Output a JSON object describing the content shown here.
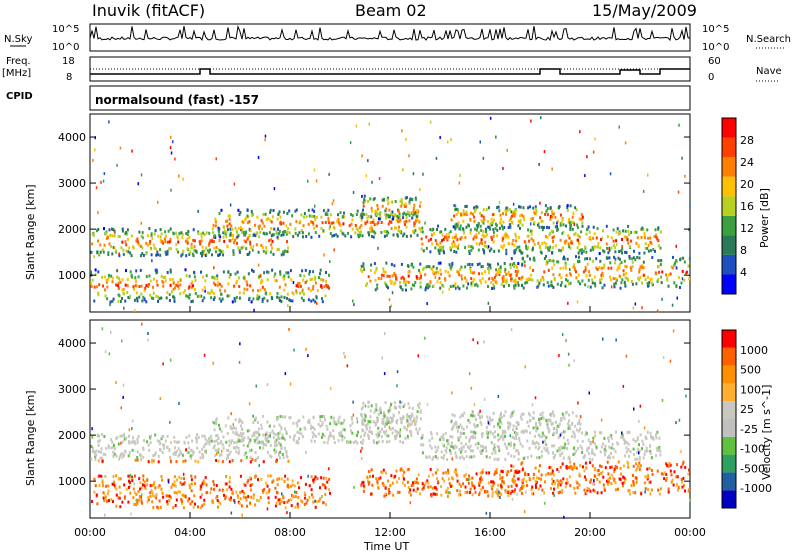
{
  "header": {
    "station": "Inuvik (fitACF)",
    "beam": "Beam 02",
    "date": "15/May/2009"
  },
  "left_labels": {
    "nsky": "N.Sky",
    "nsky_top": "10^5",
    "nsky_bottom": "10^0",
    "freq": "Freq.",
    "freq_unit": "[MHz]",
    "freq_top": "18",
    "freq_bottom": "8",
    "cpid": "CPID"
  },
  "right_labels": {
    "nsearch": "N.Search",
    "nsearch_top": "10^5",
    "nsearch_bottom": "10^0",
    "nave": "Nave",
    "nave_top": "60",
    "nave_bottom": "0"
  },
  "cpid_text": "normalsound (fast) -157",
  "colors": {
    "power": [
      "#0000ff",
      "#1f4fbf",
      "#2a7a5a",
      "#3aa040",
      "#b8d020",
      "#ffc000",
      "#ff8000",
      "#ff4000",
      "#ff0000"
    ],
    "velocity": [
      "#ff0000",
      "#ff6000",
      "#ff9000",
      "#ffb030",
      "#c8c8c0",
      "#c0c0c0",
      "#60c040",
      "#30a060",
      "#2060a0",
      "#0000c0"
    ]
  },
  "chart_data": [
    {
      "type": "heatmap",
      "name_panel": "power",
      "ylabel": "Slant Range [km]",
      "yticks": [
        "1000",
        "2000",
        "3000",
        "4000"
      ],
      "ylim": [
        200,
        4500
      ],
      "colorbar_label": "Power [dB]",
      "colorbar_ticks": [
        "4",
        "8",
        "12",
        "16",
        "20",
        "24",
        "28"
      ]
    },
    {
      "type": "heatmap",
      "name_panel": "velocity",
      "ylabel": "Slant Range [km]",
      "yticks": [
        "1000",
        "2000",
        "3000",
        "4000"
      ],
      "ylim": [
        200,
        4500
      ],
      "colorbar_label": "Velocity [m s^-1]",
      "colorbar_ticks": [
        "1000",
        "500",
        "100",
        "25",
        "-25",
        "-100",
        "-500",
        "-1000"
      ]
    }
  ],
  "xaxis": {
    "label": "Time UT",
    "ticks": [
      "00:00",
      "04:00",
      "08:00",
      "12:00",
      "16:00",
      "20:00",
      "00:00"
    ]
  }
}
